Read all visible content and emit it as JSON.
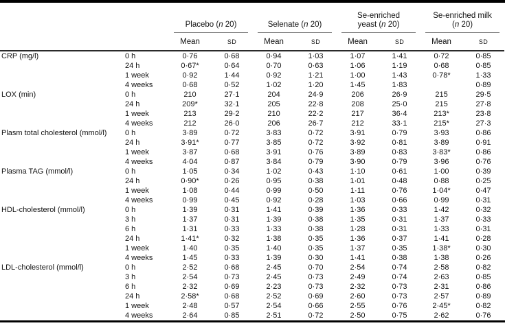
{
  "colors": {
    "background": "#ffffff",
    "text": "#111111",
    "rule_heavy": "#000000",
    "rule_light": "#7c7c7c"
  },
  "table": {
    "groups": [
      {
        "name": "placebo",
        "lines": [
          {
            "pre": "Placebo (",
            "n": "n",
            "post": " 20)"
          }
        ]
      },
      {
        "name": "selenate",
        "lines": [
          {
            "pre": "Selenate (",
            "n": "n",
            "post": " 20)"
          }
        ]
      },
      {
        "name": "se-enriched-yeast",
        "lines": [
          {
            "pre": "Se-enriched",
            "n": "",
            "post": ""
          },
          {
            "pre": "yeast (",
            "n": "n",
            "post": " 20)"
          }
        ]
      },
      {
        "name": "se-enriched-milk",
        "lines": [
          {
            "pre": "Se-enriched milk",
            "n": "",
            "post": ""
          },
          {
            "pre": "(",
            "n": "n",
            "post": " 20)"
          }
        ]
      }
    ],
    "sub_headers": {
      "mean": "Mean",
      "sd": "SD"
    },
    "sections": [
      {
        "label": "CRP (mg/l)",
        "rows": [
          {
            "time": "0 h",
            "values": [
              "0·76",
              "0·68",
              "0·94",
              "1·03",
              "1·07",
              "1·41",
              "0·72",
              "0·85"
            ]
          },
          {
            "time": "24 h",
            "values": [
              "0·67*",
              "0·64",
              "0·70",
              "0·63",
              "1·06",
              "1·19",
              "0·68",
              "0·85"
            ]
          },
          {
            "time": "1 week",
            "values": [
              "0·92",
              "1·44",
              "0·92",
              "1·21",
              "1·00",
              "1·43",
              "0·78*",
              "1·33"
            ]
          },
          {
            "time": "4 weeks",
            "values": [
              "0·68",
              "0·52",
              "1·02",
              "1·20",
              "1·45",
              "1·83",
              "",
              "0·89"
            ]
          }
        ]
      },
      {
        "label": "LOX (min)",
        "rows": [
          {
            "time": "0 h",
            "values": [
              "210",
              "27·1",
              "204",
              "24·9",
              "206",
              "26·9",
              "215",
              "29·5"
            ]
          },
          {
            "time": "24 h",
            "values": [
              "209*",
              "32·1",
              "205",
              "22·8",
              "208",
              "25·0",
              "215",
              "27·8"
            ]
          },
          {
            "time": "1 week",
            "values": [
              "213",
              "29·2",
              "210",
              "22·2",
              "217",
              "36·4",
              "213*",
              "23·8"
            ]
          },
          {
            "time": "4 weeks",
            "values": [
              "212",
              "26·0",
              "206",
              "26·7",
              "212",
              "33·1",
              "215*",
              "27·3"
            ]
          }
        ]
      },
      {
        "label": "Plasm total cholesterol (mmol/l)",
        "rows": [
          {
            "time": "0 h",
            "values": [
              "3·89",
              "0·72",
              "3·83",
              "0·72",
              "3·91",
              "0·79",
              "3·93",
              "0·86"
            ]
          },
          {
            "time": "24 h",
            "values": [
              "3·91*",
              "0·77",
              "3·85",
              "0·72",
              "3·92",
              "0·81",
              "3·89",
              "0·91"
            ]
          },
          {
            "time": "1 week",
            "values": [
              "3·87",
              "0·68",
              "3·91",
              "0·76",
              "3·89",
              "0·83",
              "3·83*",
              "0·86"
            ]
          },
          {
            "time": "4 weeks",
            "values": [
              "4·04",
              "0·87",
              "3·84",
              "0·79",
              "3·90",
              "0·79",
              "3·96",
              "0·76"
            ]
          }
        ]
      },
      {
        "label": "Plasma TAG (mmol/l)",
        "rows": [
          {
            "time": "0 h",
            "values": [
              "1·05",
              "0·34",
              "1·02",
              "0·43",
              "1·10",
              "0·61",
              "1·00",
              "0·39"
            ]
          },
          {
            "time": "24 h",
            "values": [
              "0·90*",
              "0·26",
              "0·95",
              "0·38",
              "1·01",
              "0·48",
              "0·88",
              "0·25"
            ]
          },
          {
            "time": "1 week",
            "values": [
              "1·08",
              "0·44",
              "0·99",
              "0·50",
              "1·11",
              "0·76",
              "1·04*",
              "0·47"
            ]
          },
          {
            "time": "4 weeks",
            "values": [
              "0·99",
              "0·45",
              "0·92",
              "0·28",
              "1·03",
              "0·66",
              "0·99",
              "0·31"
            ]
          }
        ]
      },
      {
        "label": "HDL-cholesterol (mmol/l)",
        "rows": [
          {
            "time": "0 h",
            "values": [
              "1·39",
              "0·31",
              "1·41",
              "0·39",
              "1·36",
              "0·33",
              "1·42",
              "0·32"
            ]
          },
          {
            "time": "3 h",
            "values": [
              "1·37",
              "0·31",
              "1·39",
              "0·38",
              "1·35",
              "0·31",
              "1·37",
              "0·33"
            ]
          },
          {
            "time": "6 h",
            "values": [
              "1·31",
              "0·33",
              "1·33",
              "0·38",
              "1·28",
              "0·31",
              "1·33",
              "0·31"
            ]
          },
          {
            "time": "24 h",
            "values": [
              "1·41*",
              "0·32",
              "1·38",
              "0·35",
              "1·36",
              "0·37",
              "1·41",
              "0·28"
            ]
          },
          {
            "time": "1 week",
            "values": [
              "1·40",
              "0·35",
              "1·40",
              "0·35",
              "1·37",
              "0·35",
              "1·38*",
              "0·30"
            ]
          },
          {
            "time": "4 weeks",
            "values": [
              "1·45",
              "0·33",
              "1·39",
              "0·30",
              "1·41",
              "0·38",
              "1·38",
              "0·26"
            ]
          }
        ]
      },
      {
        "label": "LDL-cholesterol (mmol/l)",
        "rows": [
          {
            "time": "0 h",
            "values": [
              "2·52",
              "0·68",
              "2·45",
              "0·70",
              "2·54",
              "0·74",
              "2·58",
              "0·82"
            ]
          },
          {
            "time": "3 h",
            "values": [
              "2·54",
              "0·73",
              "2·45",
              "0·73",
              "2·49",
              "0·74",
              "2·63",
              "0·85"
            ]
          },
          {
            "time": "6 h",
            "values": [
              "2·32",
              "0·69",
              "2·23",
              "0·73",
              "2·32",
              "0·73",
              "2·31",
              "0·86"
            ]
          },
          {
            "time": "24 h",
            "values": [
              "2·58*",
              "0·68",
              "2·52",
              "0·69",
              "2·60",
              "0·73",
              "2·57",
              "0·89"
            ]
          },
          {
            "time": "1 week",
            "values": [
              "2·48",
              "0·57",
              "2·54",
              "0·66",
              "2·55",
              "0·76",
              "2·45*",
              "0·82"
            ]
          },
          {
            "time": "4 weeks",
            "values": [
              "2·64",
              "0·85",
              "2·51",
              "0·72",
              "2·50",
              "0·75",
              "2·62",
              "0·76"
            ]
          }
        ]
      }
    ]
  }
}
